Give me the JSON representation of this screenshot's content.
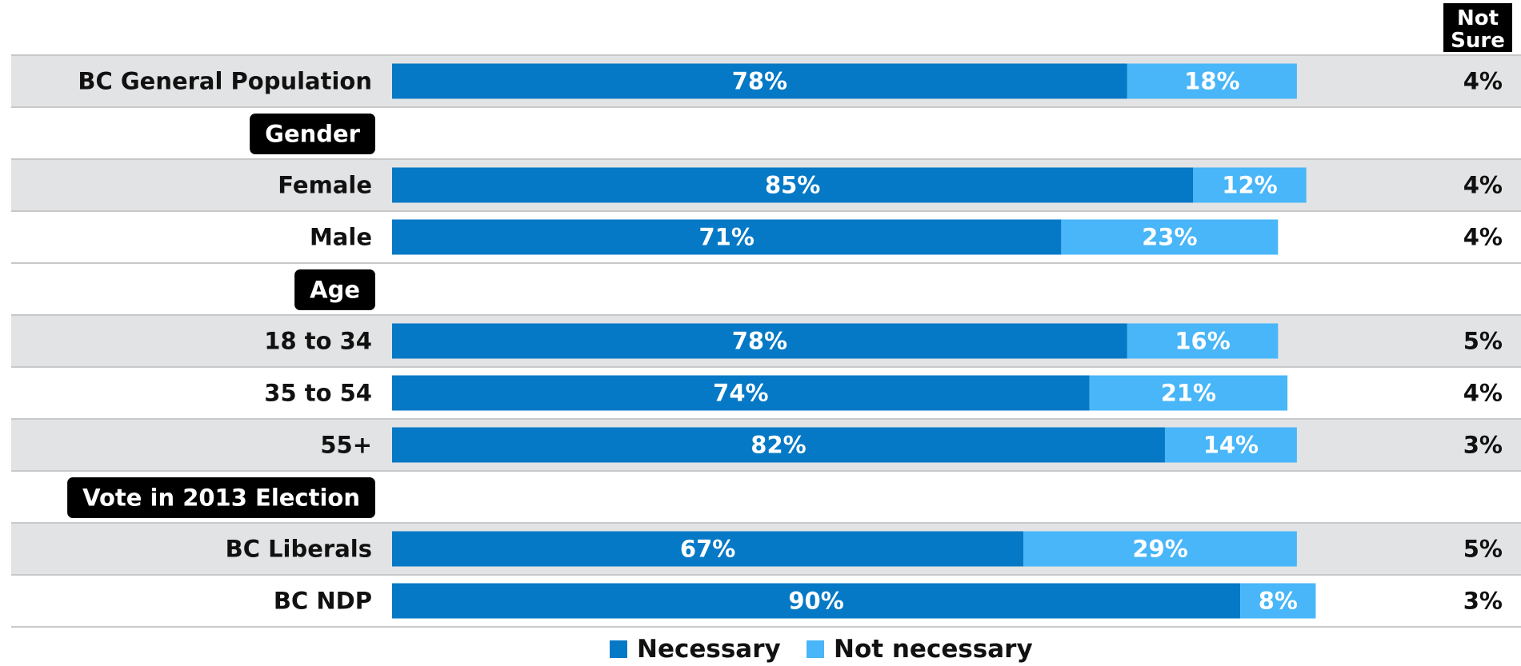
{
  "chart_data": {
    "type": "bar",
    "stacked": true,
    "orientation": "horizontal",
    "not_sure_header": [
      "Not",
      "Sure"
    ],
    "rows": [
      {
        "kind": "data",
        "label": "BC General Population",
        "necessary": 78,
        "not_necessary": 18,
        "not_sure": 4,
        "shaded": true
      },
      {
        "kind": "header",
        "label": "Gender"
      },
      {
        "kind": "data",
        "label": "Female",
        "necessary": 85,
        "not_necessary": 12,
        "not_sure": 4,
        "shaded": true
      },
      {
        "kind": "data",
        "label": "Male",
        "necessary": 71,
        "not_necessary": 23,
        "not_sure": 4,
        "shaded": false
      },
      {
        "kind": "header",
        "label": "Age"
      },
      {
        "kind": "data",
        "label": "18 to 34",
        "necessary": 78,
        "not_necessary": 16,
        "not_sure": 5,
        "shaded": true
      },
      {
        "kind": "data",
        "label": "35 to 54",
        "necessary": 74,
        "not_necessary": 21,
        "not_sure": 4,
        "shaded": false
      },
      {
        "kind": "data",
        "label": "55+",
        "necessary": 82,
        "not_necessary": 14,
        "not_sure": 3,
        "shaded": true
      },
      {
        "kind": "header",
        "label": "Vote in 2013 Election"
      },
      {
        "kind": "data",
        "label": "BC Liberals",
        "necessary": 67,
        "not_necessary": 29,
        "not_sure": 5,
        "shaded": true
      },
      {
        "kind": "data",
        "label": "BC NDP",
        "necessary": 90,
        "not_necessary": 8,
        "not_sure": 3,
        "shaded": false
      }
    ],
    "series": [
      {
        "name": "Necessary",
        "key": "necessary",
        "color": "#0579C6"
      },
      {
        "name": "Not necessary",
        "key": "not_necessary",
        "color": "#48B6F8"
      }
    ],
    "xlim": [
      0,
      100
    ],
    "legend_position": "bottom-center",
    "colors": {
      "shade": "#E2E3E4",
      "row_line": "#C8C8C8",
      "header_bg": "#000000"
    }
  }
}
